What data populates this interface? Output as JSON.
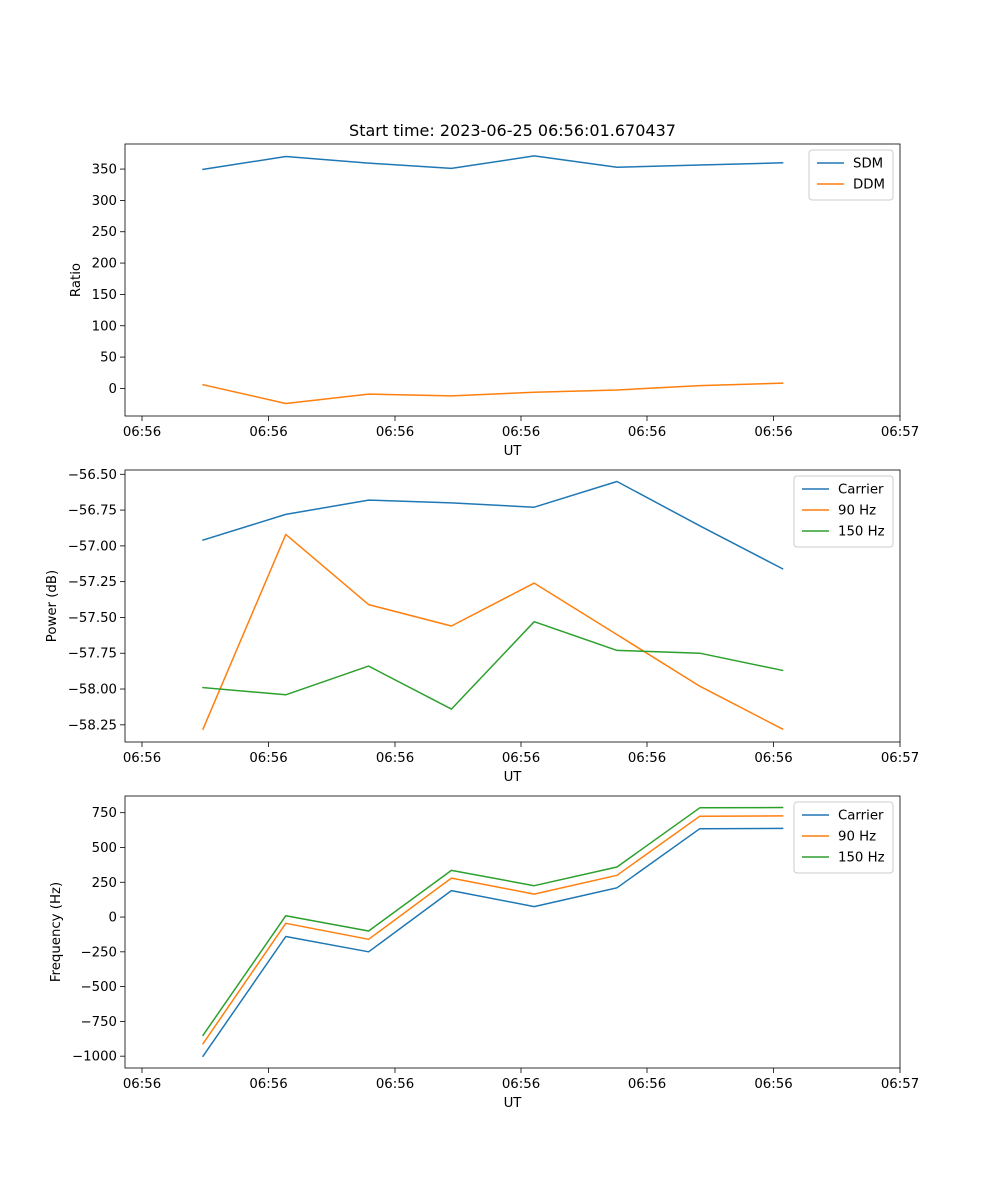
{
  "title": "Start time: 2023-06-25 06:56:01.670437",
  "chart_data": [
    {
      "type": "line",
      "title": "Start time: 2023-06-25 06:56:01.670437",
      "xlabel": "UT",
      "ylabel": "Ratio",
      "x_tick_labels": [
        "06:56",
        "06:56",
        "06:56",
        "06:56",
        "06:56",
        "06:56",
        "06:57"
      ],
      "y_ticks": [
        0,
        50,
        100,
        150,
        200,
        250,
        300,
        350
      ],
      "y_tick_labels": [
        "0",
        "50",
        "100",
        "150",
        "200",
        "250",
        "300",
        "350"
      ],
      "ylim": [
        -44,
        390
      ],
      "legend_position": "top-right",
      "grid": false,
      "series": [
        {
          "name": "SDM",
          "color": "#1f77b4",
          "values": [
            349.5,
            370.0,
            359.5,
            351.0,
            371.0,
            353.0,
            356.5,
            360.0
          ]
        },
        {
          "name": "DDM",
          "color": "#ff7f0e",
          "values": [
            6.0,
            -24.0,
            -9.0,
            -12.0,
            -6.0,
            -2.5,
            4.5,
            8.5
          ]
        }
      ]
    },
    {
      "type": "line",
      "title": "",
      "xlabel": "UT",
      "ylabel": "Power (dB)",
      "x_tick_labels": [
        "06:56",
        "06:56",
        "06:56",
        "06:56",
        "06:56",
        "06:56",
        "06:57"
      ],
      "y_ticks": [
        -58.25,
        -58.0,
        -57.75,
        -57.5,
        -57.25,
        -57.0,
        -56.75,
        -56.5
      ],
      "y_tick_labels": [
        "−58.25",
        "−58.00",
        "−57.75",
        "−57.50",
        "−57.25",
        "−57.00",
        "−56.75",
        "−56.50"
      ],
      "ylim": [
        -58.37,
        -56.47
      ],
      "legend_position": "top-right",
      "grid": false,
      "series": [
        {
          "name": "Carrier",
          "color": "#1f77b4",
          "values": [
            -56.96,
            -56.78,
            -56.68,
            -56.7,
            -56.73,
            -56.55,
            -56.86,
            -57.16
          ]
        },
        {
          "name": "90 Hz",
          "color": "#ff7f0e",
          "values": [
            -58.28,
            -56.92,
            -57.41,
            -57.56,
            -57.26,
            -57.62,
            -57.98,
            -58.28
          ]
        },
        {
          "name": "150 Hz",
          "color": "#2ca02c",
          "values": [
            -57.99,
            -58.04,
            -57.84,
            -58.14,
            -57.53,
            -57.73,
            -57.75,
            -57.87
          ]
        }
      ]
    },
    {
      "type": "line",
      "title": "",
      "xlabel": "UT",
      "ylabel": "Frequency (Hz)",
      "x_tick_labels": [
        "06:56",
        "06:56",
        "06:56",
        "06:56",
        "06:56",
        "06:56",
        "06:57"
      ],
      "y_ticks": [
        -1000,
        -750,
        -500,
        -250,
        0,
        250,
        500,
        750
      ],
      "y_tick_labels": [
        "−1000",
        "−750",
        "−500",
        "−250",
        "0",
        "250",
        "500",
        "750"
      ],
      "ylim": [
        -1085,
        870
      ],
      "legend_position": "top-right",
      "grid": false,
      "series": [
        {
          "name": "Carrier",
          "color": "#1f77b4",
          "values": [
            -1000,
            -140,
            -250,
            190,
            75,
            210,
            635,
            637
          ]
        },
        {
          "name": "90 Hz",
          "color": "#ff7f0e",
          "values": [
            -910,
            -45,
            -160,
            280,
            165,
            300,
            725,
            727
          ]
        },
        {
          "name": "150 Hz",
          "color": "#2ca02c",
          "values": [
            -850,
            10,
            -100,
            335,
            225,
            360,
            785,
            787
          ]
        }
      ]
    }
  ]
}
